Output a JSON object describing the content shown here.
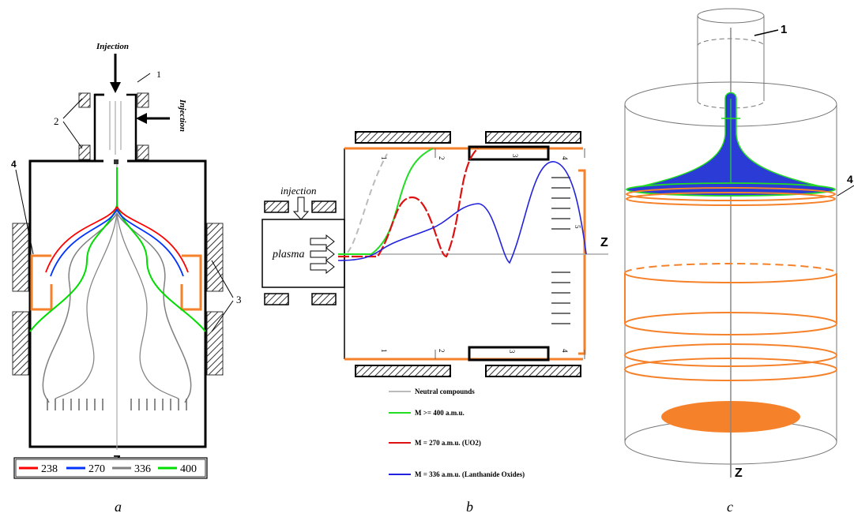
{
  "panel_a": {
    "injection_top": "Injection",
    "injection_side": "Injection",
    "callout_1": "1",
    "callout_2": "2",
    "callout_3": "3",
    "callout_4": "4",
    "axis_label": "Z",
    "legend": [
      {
        "label": "238",
        "color": "#ff0000"
      },
      {
        "label": "270",
        "color": "#0033ff"
      },
      {
        "label": "336",
        "color": "#808080"
      },
      {
        "label": "400",
        "color": "#00dd00"
      }
    ],
    "caption": "a"
  },
  "panel_b": {
    "injection_label": "injection",
    "plasma_label": "plasma",
    "axis_label": "Z",
    "section_top": [
      "1",
      "2",
      "3",
      "4"
    ],
    "section_bottom": [
      "1",
      "2",
      "3",
      "4"
    ],
    "side_label": "5",
    "legend": [
      {
        "label": "Neutral compounds",
        "color": "#bbbbbb"
      },
      {
        "label": "M >= 400 a.m.u.",
        "color": "#22dd22"
      },
      {
        "label": "M = 270 a.m.u. (UO2)",
        "color": "#dd1111"
      },
      {
        "label": "M = 336 a.m.u. (Lanthanide Oxides)",
        "color": "#2222dd"
      }
    ],
    "caption": "b"
  },
  "panel_c": {
    "callout_1": "1",
    "callout_4": "4",
    "axis_label": "Z",
    "caption": "c"
  },
  "colors": {
    "orange": "#f5822a",
    "blue": "#2a3bd6",
    "green": "#22dd22",
    "red": "#dd1111"
  }
}
